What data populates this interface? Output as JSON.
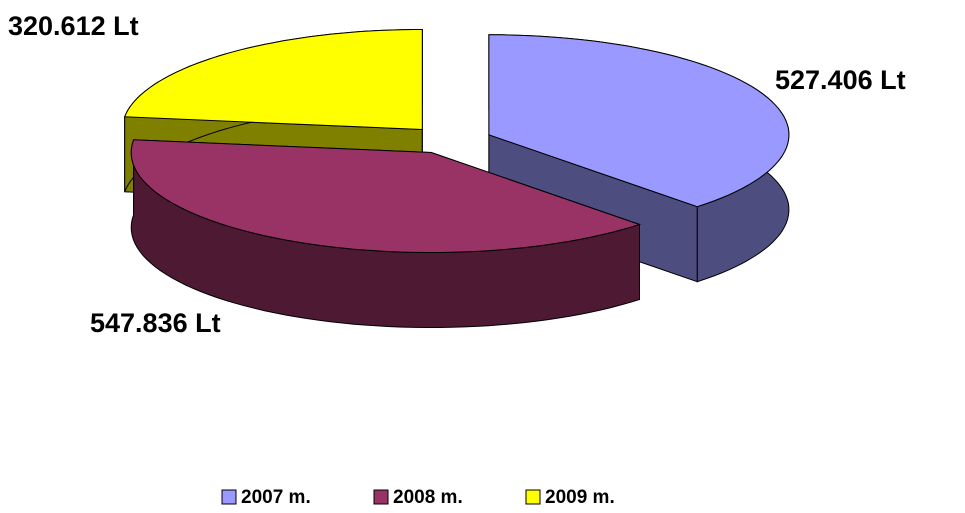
{
  "chart_data": {
    "type": "pie3d",
    "categories": [
      "2007 m.",
      "2008 m.",
      "2009 m."
    ],
    "values": [
      527406,
      547836,
      320612
    ],
    "value_labels": [
      "527.406 Lt",
      "547.836 Lt",
      "320.612 Lt"
    ],
    "colors": [
      "#9999ff",
      "#993366",
      "#ffff00"
    ],
    "side_colors": [
      "#4d4d80",
      "#4d1933",
      "#808000"
    ],
    "legend": "bottom"
  }
}
